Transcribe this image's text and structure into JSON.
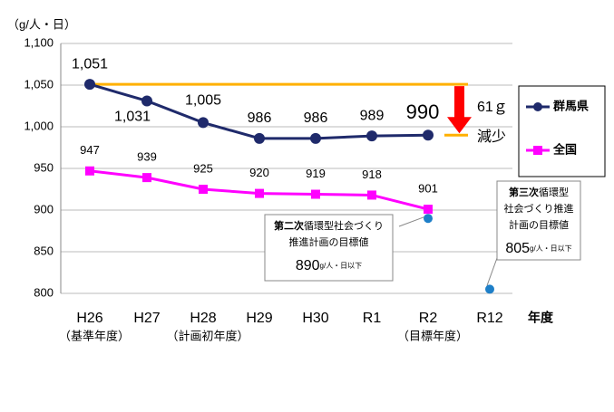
{
  "chart_data": {
    "type": "line",
    "y_axis_label": "（g/人・日）",
    "x_axis_label": "年度",
    "categories": [
      "H26",
      "H27",
      "H28",
      "H29",
      "H30",
      "R1",
      "R2",
      "R12"
    ],
    "category_notes": [
      "（基準年度）",
      null,
      "（計画初年度）",
      null,
      null,
      null,
      "（目標年度）",
      null
    ],
    "ylim": [
      800,
      1100
    ],
    "yticks": [
      800,
      850,
      900,
      950,
      {
        "value": 1000,
        "label": "1,000"
      },
      {
        "value": 1050,
        "label": "1,050"
      },
      {
        "value": 1100,
        "label": "1,100"
      }
    ],
    "grid": true,
    "legend": "right",
    "series": [
      {
        "name": "群馬県",
        "color": "#1f2a6b",
        "marker": "circle",
        "values": [
          1051,
          1031,
          1005,
          986,
          986,
          989,
          990,
          null
        ],
        "value_labels": [
          "1,051",
          "1,031",
          "1,005",
          "986",
          "986",
          "989",
          "990",
          null
        ]
      },
      {
        "name": "全国",
        "color": "#ff00ff",
        "marker": "square",
        "values": [
          947,
          939,
          925,
          920,
          919,
          918,
          901,
          null
        ]
      }
    ],
    "targets": [
      {
        "category": "R2",
        "value": 890,
        "heading_bold": "第二次",
        "heading": "循環型社会づくり",
        "lines": [
          "推進計画の目標値"
        ],
        "unit": "g/人・日以下"
      },
      {
        "category": "R12",
        "value": 805,
        "heading_bold": "第三次",
        "heading": "循環型",
        "lines": [
          "社会づくり推進",
          "計画の目標値"
        ],
        "unit": "g/人・日以下"
      }
    ],
    "target_color": "#1e7fc8",
    "reduction": {
      "value": 61,
      "label": "61ｇ",
      "text": "減少",
      "color": "#ff0000",
      "line_color": "#ffb000"
    }
  }
}
